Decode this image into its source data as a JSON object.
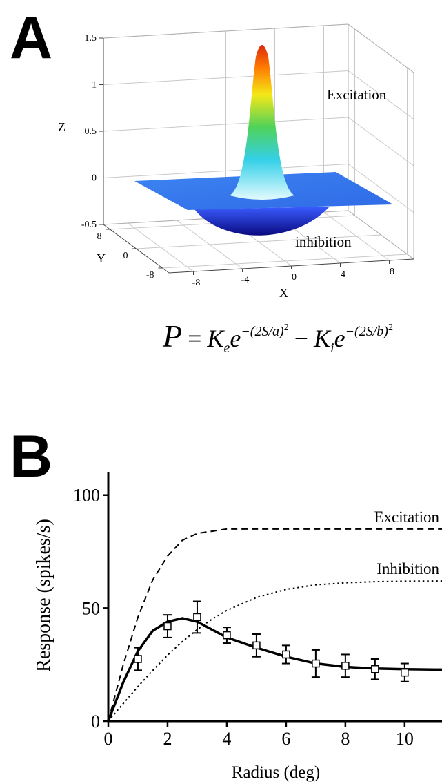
{
  "chart_data": [
    {
      "type": "surface3d",
      "panel_label": "A",
      "xlabel": "X",
      "ylabel": "Y",
      "zlabel": "Z",
      "xlim": [
        -10,
        10
      ],
      "ylim": [
        -10,
        10
      ],
      "zlim": [
        -0.5,
        1.5
      ],
      "xticks": [
        -8,
        -4,
        0,
        4,
        8
      ],
      "yticks": [
        -8,
        0,
        8
      ],
      "zticks": [
        -0.5,
        0,
        0.5,
        1,
        1.5
      ],
      "grid": true,
      "annotations": [
        "Excitation",
        "inhibition"
      ],
      "equation": [
        "P",
        "=",
        "K",
        "e",
        "e",
        "−(2S/a)",
        "2",
        "−",
        "K",
        "i",
        "e",
        "−(2S/b)",
        "2"
      ]
    },
    {
      "type": "line",
      "panel_label": "B",
      "xlabel": "Radius (deg)",
      "ylabel": "Response (spikes/s)",
      "xlim": [
        0,
        11.26
      ],
      "ylim": [
        0,
        110
      ],
      "xticks": [
        0,
        2,
        4,
        6,
        8,
        10
      ],
      "yticks": [
        0,
        50,
        100
      ],
      "x": [
        0,
        0.5,
        1,
        1.5,
        2,
        2.5,
        3,
        3.5,
        4,
        5,
        6,
        7,
        8,
        9,
        10,
        11.26
      ],
      "series": [
        {
          "name": "Excitation",
          "color": "#000000",
          "line_style": "dashed",
          "values": [
            0,
            24.7,
            46,
            62.5,
            73,
            80,
            83,
            84,
            85,
            85,
            85,
            85,
            85,
            85,
            85,
            85
          ]
        },
        {
          "name": "Inhibition",
          "color": "#000000",
          "line_style": "dotted",
          "values": [
            0,
            7.7,
            15.3,
            22.4,
            29.2,
            35.2,
            40.5,
            45.1,
            49,
            54.7,
            58.3,
            60.3,
            61.2,
            61.7,
            61.9,
            62
          ]
        },
        {
          "color": "#000000",
          "line_style": "solid",
          "values": [
            0,
            17,
            31,
            40,
            44,
            45.5,
            44,
            40.5,
            37,
            32.5,
            28.5,
            25.5,
            24,
            23.3,
            23,
            22.8
          ]
        }
      ],
      "points": {
        "x": [
          1,
          2,
          3,
          4,
          5,
          6,
          7,
          8,
          9,
          10
        ],
        "values": [
          27.5,
          42,
          46,
          38,
          33.5,
          29.5,
          25.5,
          24.5,
          23,
          21.5
        ],
        "errors": [
          5,
          5,
          7,
          3.5,
          5,
          4,
          6,
          5,
          4.5,
          4
        ]
      }
    }
  ]
}
